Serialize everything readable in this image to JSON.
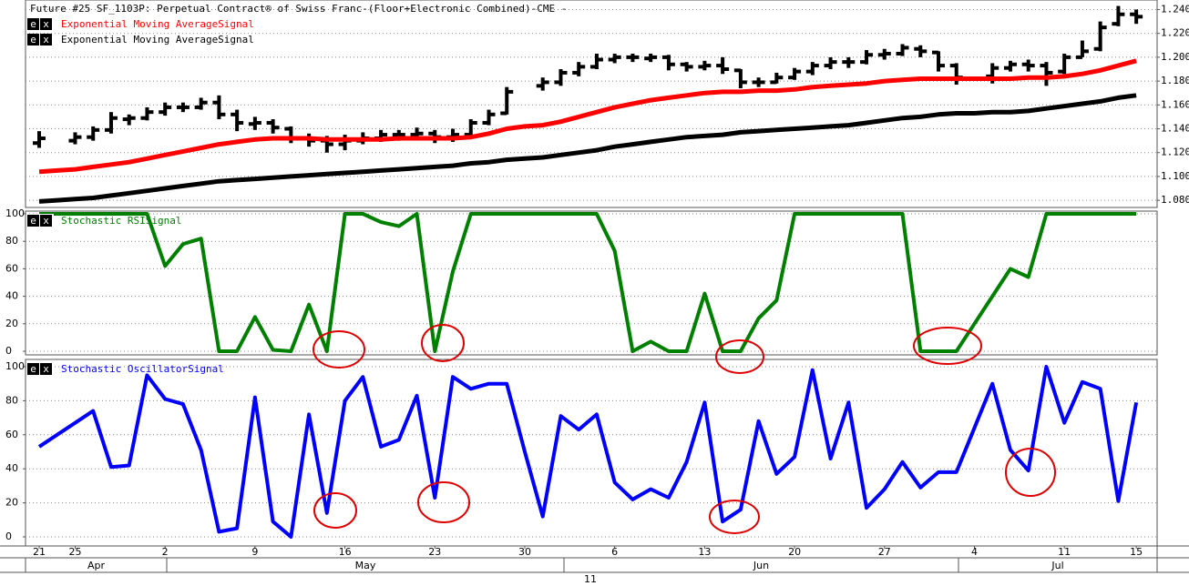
{
  "button_labels": [
    "e",
    "x"
  ],
  "time_axis": {
    "months": [
      "Apr",
      "May",
      "Jun",
      "Jul"
    ],
    "year": "11"
  },
  "chart_data": [
    {
      "type": "ohlc",
      "title": "Future #25 SF_1103P: Perpetual Contract® of Swiss Franc-(Floor+Electronic Combined)-CME -",
      "categories": [
        "21",
        null,
        "25",
        null,
        null,
        null,
        null,
        "2",
        null,
        null,
        null,
        null,
        "9",
        null,
        null,
        null,
        null,
        "16",
        null,
        null,
        null,
        null,
        "23",
        null,
        null,
        null,
        null,
        "30",
        null,
        null,
        null,
        null,
        "6",
        null,
        null,
        null,
        null,
        "13",
        null,
        null,
        null,
        null,
        "20",
        null,
        null,
        null,
        null,
        "27",
        null,
        null,
        null,
        null,
        "4",
        null,
        null,
        null,
        null,
        "11",
        null,
        null,
        null,
        "15"
      ],
      "open": [
        1.128,
        null,
        1.13,
        1.133,
        1.139,
        1.148,
        1.149,
        1.154,
        1.158,
        1.158,
        1.162,
        1.152,
        1.144,
        1.145,
        1.14,
        1.132,
        1.13,
        1.127,
        1.13,
        1.132,
        1.135,
        1.135,
        1.136,
        1.133,
        1.135,
        1.145,
        1.153,
        null,
        1.176,
        1.179,
        1.187,
        1.192,
        1.198,
        1.2,
        1.199,
        1.2,
        1.194,
        1.192,
        1.193,
        1.189,
        1.179,
        1.179,
        1.183,
        1.188,
        1.193,
        1.196,
        1.196,
        1.202,
        1.203,
        1.207,
        1.204,
        1.193,
        null,
        1.184,
        1.191,
        1.194,
        1.193,
        1.188,
        1.2,
        1.207,
        1.228,
        1.236
      ],
      "high": [
        1.138,
        null,
        1.137,
        1.142,
        1.154,
        1.152,
        1.158,
        1.162,
        1.162,
        1.166,
        1.168,
        1.156,
        1.15,
        1.148,
        1.142,
        1.136,
        1.134,
        1.135,
        1.137,
        1.139,
        1.139,
        1.141,
        1.139,
        1.14,
        1.148,
        1.156,
        1.175,
        null,
        1.183,
        1.19,
        1.196,
        1.203,
        1.203,
        1.203,
        1.203,
        1.202,
        1.196,
        1.197,
        1.2,
        1.19,
        1.183,
        1.187,
        1.191,
        1.196,
        1.2,
        1.2,
        1.206,
        1.207,
        1.211,
        1.21,
        1.205,
        1.195,
        null,
        1.195,
        1.197,
        1.198,
        1.196,
        1.203,
        1.214,
        1.23,
        1.243,
        1.24
      ],
      "low": [
        1.124,
        null,
        1.127,
        1.13,
        1.136,
        1.143,
        1.147,
        1.151,
        1.154,
        1.156,
        1.148,
        1.138,
        1.139,
        1.136,
        1.128,
        1.125,
        1.12,
        1.122,
        1.127,
        1.129,
        1.13,
        1.131,
        1.128,
        1.129,
        1.134,
        1.143,
        1.152,
        null,
        1.172,
        1.176,
        1.184,
        1.19,
        1.195,
        1.196,
        1.196,
        1.189,
        1.188,
        1.189,
        1.186,
        1.174,
        1.175,
        1.178,
        1.181,
        1.185,
        1.19,
        1.191,
        1.194,
        1.198,
        1.201,
        1.2,
        1.188,
        1.177,
        null,
        1.178,
        1.188,
        1.188,
        1.176,
        1.186,
        1.2,
        1.205,
        1.226,
        1.228
      ],
      "close": [
        1.132,
        null,
        1.133,
        1.139,
        1.149,
        1.149,
        1.154,
        1.158,
        1.158,
        1.162,
        1.152,
        1.145,
        1.145,
        1.141,
        1.132,
        1.13,
        1.127,
        1.13,
        1.132,
        1.135,
        1.135,
        1.136,
        1.133,
        1.135,
        1.145,
        1.152,
        1.171,
        null,
        1.179,
        1.187,
        1.192,
        1.198,
        1.2,
        1.2,
        1.2,
        1.194,
        1.192,
        1.193,
        1.19,
        1.179,
        1.179,
        1.183,
        1.188,
        1.193,
        1.196,
        1.196,
        1.202,
        1.203,
        1.208,
        1.205,
        1.193,
        1.183,
        null,
        1.191,
        1.194,
        1.193,
        1.187,
        1.2,
        1.205,
        1.225,
        1.236,
        1.234
      ],
      "color": "#000000",
      "series": [
        {
          "name": "Exponential Moving AverageSignal",
          "color": "#ff0000",
          "values": [
            1.104,
            1.105,
            1.106,
            1.108,
            1.11,
            1.112,
            1.115,
            1.118,
            1.121,
            1.124,
            1.127,
            1.129,
            1.131,
            1.132,
            1.132,
            1.132,
            1.131,
            1.131,
            1.131,
            1.131,
            1.132,
            1.132,
            1.132,
            1.132,
            1.133,
            1.136,
            1.14,
            1.142,
            1.143,
            1.146,
            1.15,
            1.154,
            1.158,
            1.161,
            1.164,
            1.166,
            1.168,
            1.17,
            1.171,
            1.171,
            1.172,
            1.172,
            1.173,
            1.175,
            1.176,
            1.177,
            1.178,
            1.18,
            1.181,
            1.182,
            1.182,
            1.182,
            1.182,
            1.182,
            1.182,
            1.183,
            1.183,
            1.184,
            1.186,
            1.189,
            1.193,
            1.197
          ]
        },
        {
          "name": "Exponential Moving AverageSignal",
          "color": "#000000",
          "values": [
            1.079,
            1.08,
            1.081,
            1.082,
            1.084,
            1.086,
            1.088,
            1.09,
            1.092,
            1.094,
            1.096,
            1.097,
            1.098,
            1.099,
            1.1,
            1.101,
            1.102,
            1.103,
            1.104,
            1.105,
            1.106,
            1.107,
            1.108,
            1.109,
            1.111,
            1.112,
            1.114,
            1.115,
            1.116,
            1.118,
            1.12,
            1.122,
            1.125,
            1.127,
            1.129,
            1.131,
            1.133,
            1.134,
            1.135,
            1.137,
            1.138,
            1.139,
            1.14,
            1.141,
            1.142,
            1.143,
            1.145,
            1.147,
            1.149,
            1.15,
            1.152,
            1.153,
            1.153,
            1.154,
            1.154,
            1.155,
            1.157,
            1.159,
            1.161,
            1.163,
            1.166,
            1.168
          ]
        }
      ],
      "ylim": [
        1.074,
        1.248
      ],
      "yticks": [
        {
          "value": 1.08,
          "label": "1.0800"
        },
        {
          "value": 1.1,
          "label": "1.1000"
        },
        {
          "value": 1.12,
          "label": "1.1200"
        },
        {
          "value": 1.14,
          "label": "1.1400"
        },
        {
          "value": 1.16,
          "label": "1.1600"
        },
        {
          "value": 1.18,
          "label": "1.1800"
        },
        {
          "value": 1.2,
          "label": "1.2000"
        },
        {
          "value": 1.22,
          "label": "1.2200"
        },
        {
          "value": 1.24,
          "label": "1.2400"
        }
      ],
      "grid": true
    },
    {
      "type": "line",
      "series": [
        {
          "name": "Stochastic RSISignal",
          "color": "#008000",
          "values": [
            100,
            100,
            100,
            100,
            100,
            100,
            100,
            62,
            78,
            82,
            0,
            0,
            25,
            1,
            0,
            34,
            0,
            100,
            100,
            94,
            91,
            100,
            0,
            58,
            100,
            100,
            100,
            100,
            100,
            100,
            100,
            100,
            73,
            0,
            7,
            0,
            0,
            42,
            0,
            0,
            24,
            37,
            100,
            100,
            100,
            100,
            100,
            100,
            100,
            0,
            0,
            0,
            20,
            40,
            60,
            54,
            100,
            100,
            100,
            100,
            100,
            100
          ]
        }
      ],
      "ylim": [
        0,
        100
      ],
      "yticks": [
        0,
        20,
        40,
        60,
        80,
        100
      ],
      "grid": true
    },
    {
      "type": "line",
      "series": [
        {
          "name": "Stochastic OscillatorSignal",
          "color": "#0000ff",
          "values": [
            53,
            60,
            67,
            74,
            41,
            42,
            95,
            81,
            78,
            51,
            3,
            5,
            82,
            9,
            0,
            72,
            14,
            80,
            94,
            53,
            57,
            83,
            23,
            94,
            87,
            90,
            90,
            50,
            12,
            71,
            63,
            72,
            32,
            22,
            28,
            23,
            44,
            79,
            9,
            16,
            68,
            37,
            47,
            98,
            46,
            79,
            17,
            28,
            44,
            29,
            38,
            38,
            64,
            90,
            51,
            39,
            100,
            67,
            91,
            87,
            21,
            79
          ]
        }
      ],
      "ylim": [
        0,
        100
      ],
      "yticks": [
        0,
        20,
        40,
        60,
        80,
        100
      ],
      "grid": true
    }
  ]
}
